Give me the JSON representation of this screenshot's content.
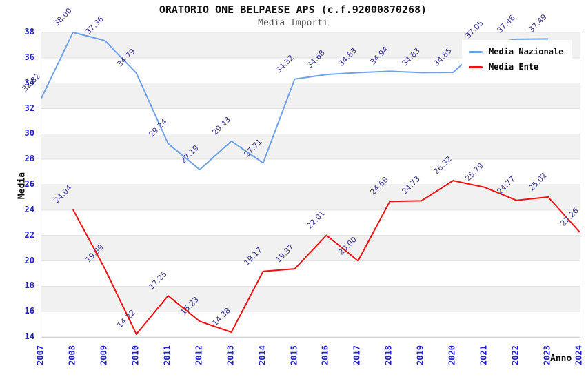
{
  "chart_data": {
    "type": "line",
    "title": "ORATORIO ONE BELPAESE APS (c.f.92000870268)",
    "subtitle": "Media Importi",
    "xlabel": "Anno",
    "ylabel": "Media",
    "ylim": [
      14,
      38
    ],
    "yticks": [
      14,
      16,
      18,
      20,
      22,
      24,
      26,
      28,
      30,
      32,
      34,
      36,
      38
    ],
    "grid": "horizontal-gridlines-with-alternating-gray-bands",
    "legend_position": "top-right-overlapping-plot",
    "x": [
      2007,
      2008,
      2009,
      2010,
      2011,
      2012,
      2013,
      2014,
      2015,
      2016,
      2017,
      2018,
      2019,
      2020,
      2021,
      2022,
      2023,
      2024
    ],
    "series": [
      {
        "name": "Media Nazionale",
        "color": "#6fa1e8",
        "values": [
          32.82,
          38.0,
          37.36,
          34.79,
          29.24,
          27.19,
          29.43,
          27.71,
          34.32,
          34.68,
          34.83,
          34.94,
          34.83,
          34.85,
          37.05,
          37.46,
          37.49,
          null
        ],
        "labels": [
          "32.82",
          "38.00",
          "37.36",
          "34.79",
          "29.24",
          "27.19",
          "29.43",
          "27.71",
          "34.32",
          "34.68",
          "34.83",
          "34.94",
          "34.83",
          "34.85",
          "37.05",
          "37.46",
          "37.49",
          ""
        ]
      },
      {
        "name": "Media Ente",
        "color": "#ee1111",
        "values": [
          null,
          24.04,
          19.39,
          14.22,
          17.25,
          15.23,
          14.38,
          19.17,
          19.37,
          22.01,
          20.0,
          24.68,
          24.73,
          26.32,
          25.79,
          24.77,
          25.02,
          22.26
        ],
        "labels": [
          "",
          "24.04",
          "19.39",
          "14.22",
          "17.25",
          "15.23",
          "14.38",
          "19.17",
          "19.37",
          "22.01",
          "20.00",
          "24.68",
          "24.73",
          "26.32",
          "25.79",
          "24.77",
          "25.02",
          "22.26"
        ]
      }
    ],
    "colors": {
      "tick_label_blue": "#2222cc",
      "data_label_navy": "#333388",
      "band_gray": "#f1f1f1",
      "gridline": "#e2e2e2",
      "plot_border": "#c9c9c9",
      "title_black": "#111111",
      "subtitle_gray": "#555555"
    }
  }
}
